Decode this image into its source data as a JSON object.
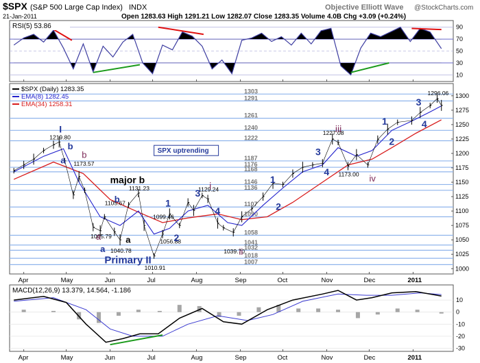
{
  "header": {
    "symbol": "$SPX",
    "name": "(S&P 500 Large Cap Index)",
    "exchange": "INDX",
    "source": "Objective Elliott Wave",
    "copyright": "@StockCharts.com",
    "date": "21-Jan-2011",
    "quote": "Open 1283.63  High 1291.21  Low 1282.07  Close 1283.35  Volume 4.0B  Chg +3.09 (+0.24%)"
  },
  "colors": {
    "price": "#000000",
    "ema8": "#2222cc",
    "ema34": "#d81c1c",
    "hline": "#8fb4ec",
    "label_blue": "#23389a",
    "label_purple": "#7d2a58",
    "rsi_line": "#3c3ca0",
    "divergence_red": "#e01010",
    "divergence_green": "#1a9a1a",
    "macd_hist": "#a6a6a6"
  },
  "chart_data": [
    {
      "type": "line",
      "panel": "rsi",
      "legend": "RSI(5) 53.86",
      "ylim": [
        0,
        100
      ],
      "y_ticks": [
        10,
        30,
        50,
        70,
        90
      ],
      "series": [
        {
          "name": "RSI(5)",
          "x": [
            "2010-03-25",
            "2010-04-01",
            "2010-04-08",
            "2010-04-15",
            "2010-04-22",
            "2010-04-29",
            "2010-05-06",
            "2010-05-13",
            "2010-05-20",
            "2010-05-27",
            "2010-06-03",
            "2010-06-10",
            "2010-06-17",
            "2010-06-24",
            "2010-07-01",
            "2010-07-08",
            "2010-07-15",
            "2010-07-22",
            "2010-07-29",
            "2010-08-05",
            "2010-08-12",
            "2010-08-19",
            "2010-08-26",
            "2010-09-02",
            "2010-09-09",
            "2010-09-16",
            "2010-09-23",
            "2010-09-30",
            "2010-10-07",
            "2010-10-14",
            "2010-10-21",
            "2010-10-28",
            "2010-11-04",
            "2010-11-11",
            "2010-11-18",
            "2010-11-25",
            "2010-12-02",
            "2010-12-09",
            "2010-12-16",
            "2010-12-23",
            "2010-12-30",
            "2011-01-06",
            "2011-01-13",
            "2011-01-21"
          ],
          "values": [
            60,
            72,
            78,
            65,
            85,
            55,
            20,
            62,
            15,
            58,
            40,
            65,
            78,
            30,
            12,
            60,
            52,
            82,
            75,
            58,
            20,
            35,
            12,
            68,
            72,
            80,
            66,
            74,
            60,
            80,
            62,
            84,
            88,
            25,
            10,
            55,
            80,
            74,
            82,
            90,
            66,
            88,
            82,
            54
          ]
        }
      ],
      "divergence_lines": [
        {
          "color": "red",
          "x": [
            "2010-04-20",
            "2010-05-05"
          ],
          "values": [
            89,
            68
          ]
        },
        {
          "color": "green",
          "x": [
            "2010-05-20",
            "2010-06-22"
          ],
          "values": [
            14,
            27
          ]
        },
        {
          "color": "red",
          "x": [
            "2010-07-05",
            "2010-08-06"
          ],
          "values": [
            90,
            78
          ]
        },
        {
          "color": "green",
          "x": [
            "2010-11-18",
            "2010-12-15"
          ],
          "values": [
            14,
            30
          ]
        },
        {
          "color": "red",
          "x": [
            "2010-12-31",
            "2011-01-21"
          ],
          "values": [
            88,
            86
          ]
        }
      ]
    },
    {
      "type": "line",
      "panel": "price",
      "title": "$SPX (Daily) 1283.35",
      "legend": [
        {
          "name": "$SPX (Daily) 1283.35",
          "color": "#000000"
        },
        {
          "name": "EMA(8) 1282.45",
          "color": "#2222cc"
        },
        {
          "name": "EMA(34) 1258.31",
          "color": "#d81c1c"
        }
      ],
      "ylim": [
        992,
        1320
      ],
      "y_ticks": [
        1000,
        1025,
        1050,
        1075,
        1100,
        1125,
        1150,
        1175,
        1200,
        1225,
        1250,
        1275,
        1300
      ],
      "x_ticks": [
        "Apr",
        "May",
        "Jun",
        "Jul",
        "Aug",
        "Sep",
        "Oct",
        "Nov",
        "Dec",
        "2011"
      ],
      "x_tick_dates": [
        "2010-04-01",
        "2010-05-01",
        "2010-06-01",
        "2010-07-01",
        "2010-08-01",
        "2010-09-01",
        "2010-10-01",
        "2010-11-01",
        "2010-12-01",
        "2011-01-01"
      ],
      "series": [
        {
          "name": "SPX",
          "x": [
            "2010-03-25",
            "2010-04-01",
            "2010-04-08",
            "2010-04-15",
            "2010-04-22",
            "2010-04-26",
            "2010-04-30",
            "2010-05-06",
            "2010-05-10",
            "2010-05-14",
            "2010-05-20",
            "2010-05-25",
            "2010-05-28",
            "2010-06-04",
            "2010-06-08",
            "2010-06-14",
            "2010-06-21",
            "2010-06-25",
            "2010-07-02",
            "2010-07-08",
            "2010-07-13",
            "2010-07-20",
            "2010-07-26",
            "2010-07-30",
            "2010-08-05",
            "2010-08-09",
            "2010-08-16",
            "2010-08-20",
            "2010-08-27",
            "2010-09-02",
            "2010-09-09",
            "2010-09-17",
            "2010-09-24",
            "2010-10-01",
            "2010-10-08",
            "2010-10-15",
            "2010-10-22",
            "2010-10-29",
            "2010-11-05",
            "2010-11-09",
            "2010-11-16",
            "2010-11-22",
            "2010-11-30",
            "2010-12-07",
            "2010-12-14",
            "2010-12-21",
            "2010-12-31",
            "2011-01-06",
            "2011-01-13",
            "2011-01-18",
            "2011-01-21"
          ],
          "values": [
            1170,
            1180,
            1190,
            1205,
            1215,
            1219.8,
            1187,
            1128,
            1160,
            1136,
            1072,
            1065.79,
            1090,
            1064,
            1050,
            1111,
            1131.23,
            1075,
            1022,
            1060,
            1095,
            1075,
            1115,
            1101,
            1127,
            1121,
            1079,
            1071,
            1063,
            1090,
            1104,
            1125,
            1148,
            1146,
            1165,
            1176,
            1180,
            1183,
            1225,
            1219,
            1178,
            1198,
            1180,
            1224,
            1242,
            1254,
            1257,
            1271,
            1283,
            1295,
            1283.35
          ]
        },
        {
          "name": "EMA(8)",
          "x": [
            "2010-03-25",
            "2010-04-15",
            "2010-04-29",
            "2010-05-10",
            "2010-05-25",
            "2010-06-08",
            "2010-06-21",
            "2010-07-02",
            "2010-07-13",
            "2010-07-26",
            "2010-08-09",
            "2010-08-23",
            "2010-09-02",
            "2010-09-17",
            "2010-10-01",
            "2010-10-15",
            "2010-10-29",
            "2010-11-09",
            "2010-11-22",
            "2010-12-03",
            "2010-12-17",
            "2010-12-31",
            "2011-01-13",
            "2011-01-21"
          ],
          "values": [
            1168,
            1195,
            1208,
            1150,
            1090,
            1075,
            1100,
            1060,
            1070,
            1100,
            1110,
            1080,
            1075,
            1110,
            1140,
            1168,
            1180,
            1210,
            1195,
            1205,
            1240,
            1256,
            1272,
            1282.45
          ]
        },
        {
          "name": "EMA(34)",
          "x": [
            "2010-03-25",
            "2010-04-22",
            "2010-05-13",
            "2010-06-01",
            "2010-06-21",
            "2010-07-08",
            "2010-07-26",
            "2010-08-16",
            "2010-09-02",
            "2010-09-20",
            "2010-10-08",
            "2010-10-29",
            "2010-11-16",
            "2010-12-03",
            "2010-12-17",
            "2011-01-03",
            "2011-01-21"
          ],
          "values": [
            1155,
            1185,
            1165,
            1120,
            1098,
            1080,
            1088,
            1095,
            1085,
            1090,
            1115,
            1150,
            1180,
            1190,
            1210,
            1235,
            1258.31
          ]
        }
      ],
      "horizontal_levels": [
        1303,
        1291,
        1261,
        1240,
        1222,
        1187,
        1176,
        1168,
        1146,
        1136,
        1107,
        1090,
        1058,
        1041,
        1032,
        1018,
        1007
      ],
      "price_annotations": [
        {
          "text": "1219.80",
          "x": "2010-04-26",
          "y": 1219.8
        },
        {
          "text": "1173.57",
          "x": "2010-05-13",
          "y": 1173.57
        },
        {
          "text": "1065.79",
          "x": "2010-05-25",
          "y": 1065.79
        },
        {
          "text": "1105.67",
          "x": "2010-06-04",
          "y": 1105.67
        },
        {
          "text": "1040.78",
          "x": "2010-06-08",
          "y": 1040.78
        },
        {
          "text": "1131.23",
          "x": "2010-06-21",
          "y": 1131.23
        },
        {
          "text": "1010.91",
          "x": "2010-07-02",
          "y": 1010.91
        },
        {
          "text": "1099.46",
          "x": "2010-07-08",
          "y": 1099.46
        },
        {
          "text": "1056.88",
          "x": "2010-07-13",
          "y": 1056.88
        },
        {
          "text": "1129.24",
          "x": "2010-08-09",
          "y": 1129.24
        },
        {
          "text": "1039.70",
          "x": "2010-08-27",
          "y": 1039.7
        },
        {
          "text": "1227.08",
          "x": "2010-11-05",
          "y": 1227.08
        },
        {
          "text": "1173.00",
          "x": "2010-11-16",
          "y": 1173.0
        },
        {
          "text": "1296.06",
          "x": "2011-01-18",
          "y": 1296.06
        }
      ],
      "wave_labels": [
        {
          "text": "I",
          "color": "blue"
        },
        {
          "text": "b",
          "color": "blue"
        },
        {
          "text": "b",
          "color": "purple"
        },
        {
          "text": "a",
          "color": "blue"
        },
        {
          "text": "major b",
          "color": "black"
        },
        {
          "text": "b",
          "color": "blue"
        },
        {
          "text": "a",
          "color": "purple"
        },
        {
          "text": "a",
          "color": "blue"
        },
        {
          "text": "a",
          "color": "black"
        },
        {
          "text": "Primary II",
          "color": "blue"
        },
        {
          "text": "1",
          "color": "blue"
        },
        {
          "text": "2",
          "color": "blue"
        },
        {
          "text": "3",
          "color": "blue"
        },
        {
          "text": "i",
          "color": "purple"
        },
        {
          "text": "4",
          "color": "blue"
        },
        {
          "text": "ii",
          "color": "purple"
        },
        {
          "text": "1",
          "color": "blue"
        },
        {
          "text": "2",
          "color": "blue"
        },
        {
          "text": "3",
          "color": "blue"
        },
        {
          "text": "4",
          "color": "blue"
        },
        {
          "text": "iii",
          "color": "purple"
        },
        {
          "text": "iv",
          "color": "purple"
        },
        {
          "text": "1",
          "color": "blue"
        },
        {
          "text": "2",
          "color": "blue"
        },
        {
          "text": "3",
          "color": "blue"
        },
        {
          "text": "4",
          "color": "blue"
        }
      ],
      "note": "SPX uptrending"
    },
    {
      "type": "line",
      "panel": "macd",
      "legend": "MACD(12,26,9) 13.379, 14.564, -1.186",
      "ylim": [
        -32,
        22
      ],
      "y_ticks": [
        10,
        0,
        -10,
        -20,
        -30
      ],
      "series": [
        {
          "name": "MACD",
          "x": [
            "2010-03-25",
            "2010-04-15",
            "2010-05-01",
            "2010-05-15",
            "2010-05-29",
            "2010-06-10",
            "2010-06-22",
            "2010-07-05",
            "2010-07-20",
            "2010-08-05",
            "2010-08-20",
            "2010-09-02",
            "2010-09-20",
            "2010-10-08",
            "2010-10-29",
            "2010-11-09",
            "2010-11-22",
            "2010-12-03",
            "2010-12-17",
            "2011-01-03",
            "2011-01-21"
          ],
          "values": [
            10,
            13,
            8,
            -10,
            -25,
            -22,
            -18,
            -18,
            -5,
            3,
            -8,
            -10,
            2,
            10,
            15,
            18,
            10,
            12,
            16,
            17,
            13.379
          ]
        },
        {
          "name": "Signal",
          "x": [
            "2010-03-25",
            "2010-04-22",
            "2010-05-15",
            "2010-06-01",
            "2010-06-17",
            "2010-07-08",
            "2010-07-26",
            "2010-08-16",
            "2010-09-06",
            "2010-09-24",
            "2010-10-15",
            "2010-11-09",
            "2010-11-29",
            "2010-12-17",
            "2011-01-06",
            "2011-01-21"
          ],
          "values": [
            9,
            12,
            2,
            -14,
            -20,
            -20,
            -10,
            -3,
            -7,
            -2,
            9,
            15,
            14,
            14,
            16,
            14.564
          ]
        },
        {
          "name": "Histogram",
          "x": [
            "2010-04-01",
            "2010-04-22",
            "2010-05-10",
            "2010-05-24",
            "2010-06-07",
            "2010-06-21",
            "2010-07-06",
            "2010-07-20",
            "2010-08-03",
            "2010-08-17",
            "2010-08-31",
            "2010-09-14",
            "2010-09-28",
            "2010-10-12",
            "2010-10-26",
            "2010-11-09",
            "2010-11-23",
            "2010-12-07",
            "2010-12-21",
            "2011-01-04",
            "2011-01-21"
          ],
          "values": [
            2,
            1,
            -6,
            -9,
            -3,
            2,
            1,
            6,
            5,
            -4,
            -3,
            4,
            6,
            3,
            3,
            2,
            -5,
            -2,
            3,
            2,
            -1.186
          ]
        }
      ],
      "divergence_lines": [
        {
          "color": "green",
          "x": [
            "2010-06-01",
            "2010-07-08"
          ],
          "values": [
            -27,
            -19
          ]
        }
      ]
    }
  ]
}
